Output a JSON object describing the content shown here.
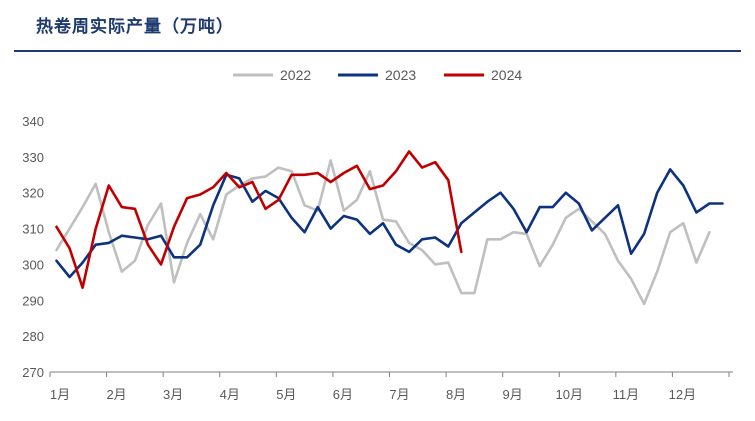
{
  "chart_data": {
    "type": "line",
    "title": "热卷周实际产量（万吨）",
    "ylim": [
      270,
      340
    ],
    "yticks": [
      270,
      280,
      290,
      300,
      310,
      320,
      330,
      340
    ],
    "month_labels": [
      "1月",
      "2月",
      "3月",
      "4月",
      "5月",
      "6月",
      "7月",
      "8月",
      "9月",
      "10月",
      "11月",
      "12月"
    ],
    "legend_position": "top-center",
    "series": [
      {
        "name": "2022",
        "color": "#bfbfbf",
        "values": [
          304,
          310,
          316,
          322.5,
          309,
          298,
          301,
          311,
          317,
          295,
          306,
          314,
          307,
          319.5,
          322,
          324,
          324.5,
          327,
          326,
          316.5,
          315,
          329,
          315,
          318,
          326,
          312.5,
          312,
          306,
          304,
          300,
          300.5,
          292,
          292,
          307,
          307,
          309,
          308.5,
          299.5,
          305.5,
          313,
          315.5,
          312,
          308.5,
          301,
          296,
          289,
          298,
          309,
          311.5,
          300.5,
          309
        ]
      },
      {
        "name": "2023",
        "color": "#0d3380",
        "values": [
          301,
          296.5,
          300.5,
          305.5,
          306,
          308,
          307.5,
          307,
          308,
          302,
          302,
          305.5,
          316.5,
          325,
          324,
          317.5,
          320.5,
          318.5,
          313,
          309,
          316,
          310,
          313.5,
          312.5,
          308.5,
          311.5,
          305.5,
          303.5,
          307,
          307.5,
          305,
          311.5,
          314.5,
          317.5,
          320,
          315.5,
          309,
          316,
          316,
          320,
          317,
          309.5,
          313,
          316.5,
          303,
          308.5,
          320,
          326.5,
          322,
          314.5,
          317,
          317
        ]
      },
      {
        "name": "2024",
        "color": "#c00000",
        "values": [
          310.5,
          304.5,
          293.5,
          310,
          322,
          316,
          315.5,
          305.5,
          300,
          310.5,
          318.5,
          319.5,
          321.5,
          325.5,
          321.5,
          323,
          315.5,
          318,
          325,
          325,
          325.5,
          323,
          325.5,
          327.5,
          321,
          322,
          326,
          331.5,
          327,
          328.5,
          323.5,
          303.5
        ]
      }
    ]
  }
}
